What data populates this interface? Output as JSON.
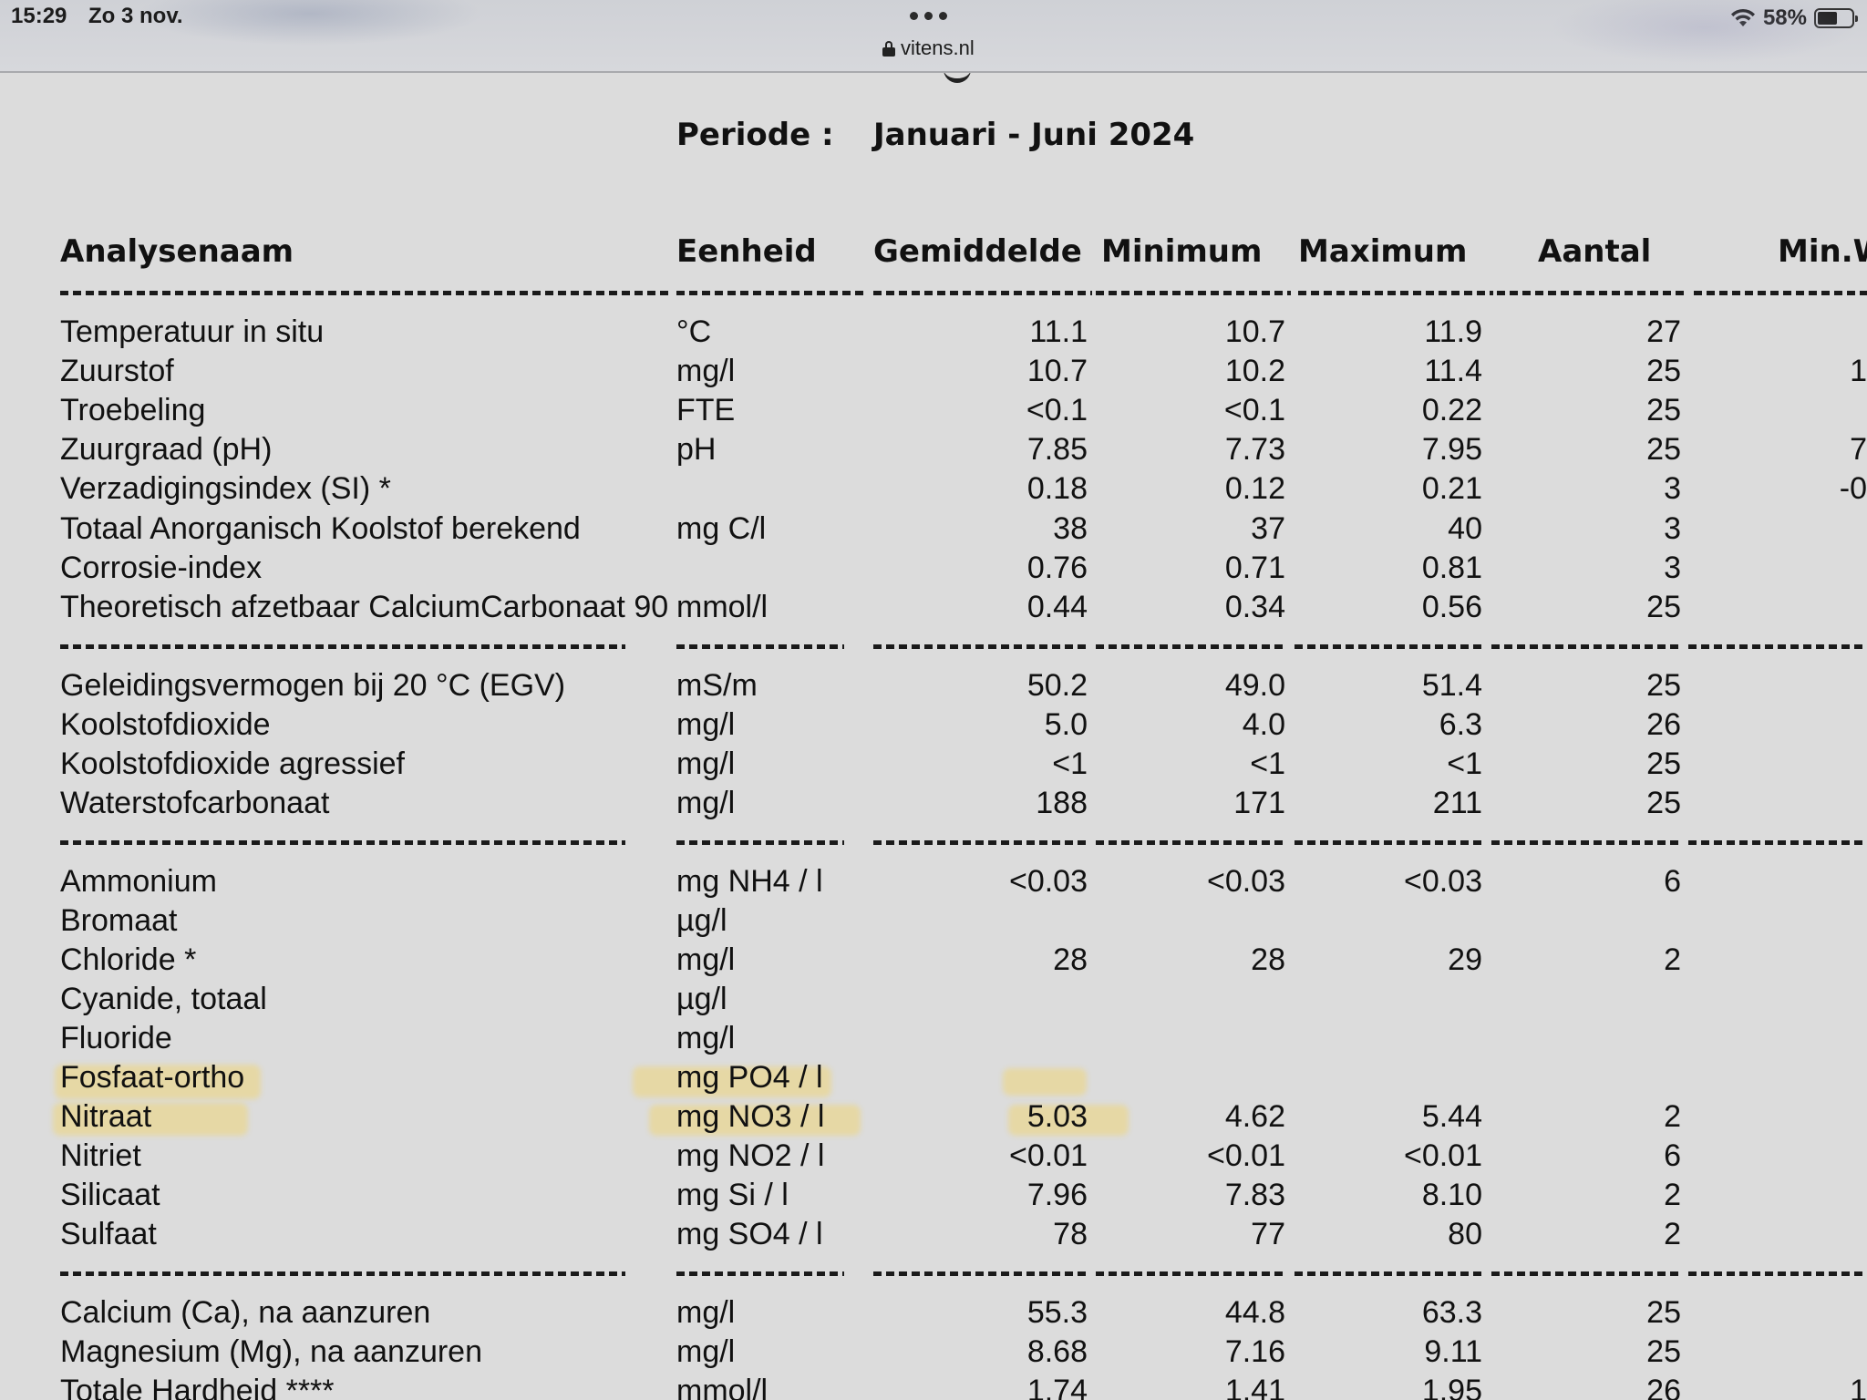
{
  "status_bar": {
    "time": "15:29",
    "date": "Zo 3 nov.",
    "battery": "58%",
    "battery_level": 0.58
  },
  "browser": {
    "url": "vitens.nl"
  },
  "report": {
    "period_label": "Periode :",
    "period_value": "Januari - Juni 2024",
    "columns": {
      "name": "Analysenaam",
      "unit": "Eenheid",
      "avg": "Gemiddelde",
      "min": "Minimum",
      "max": "Maximum",
      "count": "Aantal",
      "minw": "Min.W"
    },
    "rows": [
      {
        "name": "Temperatuur in situ",
        "unit": "°C",
        "avg": "11.1",
        "min": "10.7",
        "max": "11.9",
        "count": "27",
        "minw": ""
      },
      {
        "name": "Zuurstof",
        "unit": "mg/l",
        "avg": "10.7",
        "min": "10.2",
        "max": "11.4",
        "count": "25",
        "minw": "1"
      },
      {
        "name": "Troebeling",
        "unit": "FTE",
        "avg": "<0.1",
        "min": "<0.1",
        "max": "0.22",
        "count": "25",
        "minw": ""
      },
      {
        "name": "Zuurgraad (pH)",
        "unit": "pH",
        "avg": "7.85",
        "min": "7.73",
        "max": "7.95",
        "count": "25",
        "minw": "7"
      },
      {
        "name": "Verzadigingsindex (SI) *",
        "unit": "",
        "avg": "0.18",
        "min": "0.12",
        "max": "0.21",
        "count": "3",
        "minw": "-0"
      },
      {
        "name": "Totaal Anorganisch Koolstof berekend",
        "unit": "mg C/l",
        "avg": "38",
        "min": "37",
        "max": "40",
        "count": "3",
        "minw": ""
      },
      {
        "name": "Corrosie-index",
        "unit": "",
        "avg": "0.76",
        "min": "0.71",
        "max": "0.81",
        "count": "3",
        "minw": ""
      },
      {
        "name": "Theoretisch afzetbaar CalciumCarbonaat 90°",
        "unit": "mmol/l",
        "avg": "0.44",
        "min": "0.34",
        "max": "0.56",
        "count": "25",
        "minw": ""
      },
      {
        "name": "Geleidingsvermogen bij 20 °C (EGV)",
        "unit": "mS/m",
        "avg": "50.2",
        "min": "49.0",
        "max": "51.4",
        "count": "25",
        "minw": ""
      },
      {
        "name": "Koolstofdioxide",
        "unit": "mg/l",
        "avg": "5.0",
        "min": "4.0",
        "max": "6.3",
        "count": "26",
        "minw": ""
      },
      {
        "name": "Koolstofdioxide agressief",
        "unit": "mg/l",
        "avg": "<1",
        "min": "<1",
        "max": "<1",
        "count": "25",
        "minw": ""
      },
      {
        "name": "Waterstofcarbonaat",
        "unit": "mg/l",
        "avg": "188",
        "min": "171",
        "max": "211",
        "count": "25",
        "minw": ""
      },
      {
        "name": "Ammonium",
        "unit": "mg NH4 / l",
        "avg": "<0.03",
        "min": "<0.03",
        "max": "<0.03",
        "count": "6",
        "minw": ""
      },
      {
        "name": "Bromaat",
        "unit": "µg/l",
        "avg": "",
        "min": "",
        "max": "",
        "count": "",
        "minw": ""
      },
      {
        "name": "Chloride *",
        "unit": "mg/l",
        "avg": "28",
        "min": "28",
        "max": "29",
        "count": "2",
        "minw": ""
      },
      {
        "name": "Cyanide, totaal",
        "unit": "µg/l",
        "avg": "",
        "min": "",
        "max": "",
        "count": "",
        "minw": ""
      },
      {
        "name": "Fluoride",
        "unit": "mg/l",
        "avg": "",
        "min": "",
        "max": "",
        "count": "",
        "minw": ""
      },
      {
        "name": "Fosfaat-ortho",
        "unit": "mg PO4 / l",
        "avg": "",
        "min": "",
        "max": "",
        "count": "",
        "minw": ""
      },
      {
        "name": "Nitraat",
        "unit": "mg NO3 / l",
        "avg": "5.03",
        "min": "4.62",
        "max": "5.44",
        "count": "2",
        "minw": ""
      },
      {
        "name": "Nitriet",
        "unit": "mg NO2 / l",
        "avg": "<0.01",
        "min": "<0.01",
        "max": "<0.01",
        "count": "6",
        "minw": ""
      },
      {
        "name": "Silicaat",
        "unit": "mg Si / l",
        "avg": "7.96",
        "min": "7.83",
        "max": "8.10",
        "count": "2",
        "minw": ""
      },
      {
        "name": "Sulfaat",
        "unit": "mg SO4 / l",
        "avg": "78",
        "min": "77",
        "max": "80",
        "count": "2",
        "minw": ""
      },
      {
        "name": "Calcium (Ca), na aanzuren",
        "unit": "mg/l",
        "avg": "55.3",
        "min": "44.8",
        "max": "63.3",
        "count": "25",
        "minw": ""
      },
      {
        "name": "Magnesium (Mg), na aanzuren",
        "unit": "mg/l",
        "avg": "8.68",
        "min": "7.16",
        "max": "9.11",
        "count": "25",
        "minw": ""
      },
      {
        "name": "Totale Hardheid ****",
        "unit": "mmol/l",
        "avg": "1.74",
        "min": "1.41",
        "max": "1.95",
        "count": "26",
        "minw": "1"
      }
    ]
  }
}
